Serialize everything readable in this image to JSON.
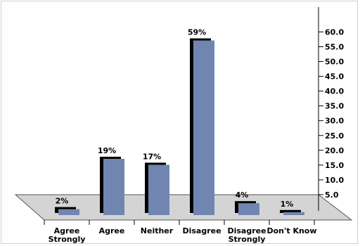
{
  "chart_data": {
    "type": "bar",
    "title": "",
    "xlabel": "",
    "ylabel": "",
    "categories": [
      [
        "Agree",
        "Strongly"
      ],
      [
        "Agree"
      ],
      [
        "Neither"
      ],
      [
        "Disagree"
      ],
      [
        "Disagree",
        "Strongly"
      ],
      [
        "Don't Know"
      ]
    ],
    "values": [
      2,
      19,
      17,
      59,
      4,
      1
    ],
    "data_labels": [
      "2%",
      "19%",
      "17%",
      "59%",
      "4%",
      "1%"
    ],
    "ylim": [
      0,
      65
    ],
    "yticks": [
      {
        "value": 5,
        "label": "5.0"
      },
      {
        "value": 10,
        "label": "10.0"
      },
      {
        "value": 15,
        "label": "15.0"
      },
      {
        "value": 20,
        "label": "20.0"
      },
      {
        "value": 25,
        "label": "25.0"
      },
      {
        "value": 30,
        "label": "30.0"
      },
      {
        "value": 35,
        "label": "35.0"
      },
      {
        "value": 40,
        "label": "40.0"
      },
      {
        "value": 45,
        "label": "45.0"
      },
      {
        "value": 50,
        "label": "50.0"
      },
      {
        "value": 55,
        "label": "55.0"
      },
      {
        "value": 60,
        "label": "60.0"
      }
    ],
    "y_axis_position": "right",
    "grid": false,
    "colors": {
      "bar": "#7086b0",
      "shadow": "#000000",
      "floor": "#d4d4d4",
      "floor_edge": "#555555"
    }
  }
}
